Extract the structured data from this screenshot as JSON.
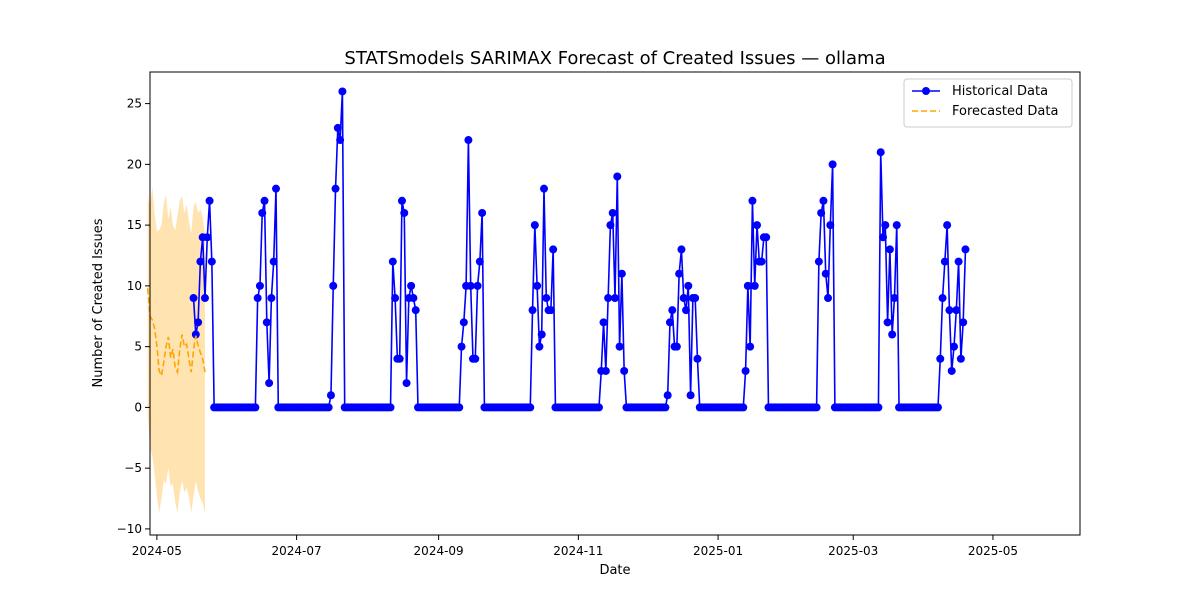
{
  "chart_data": {
    "type": "line",
    "title": "STATSmodels SARIMAX Forecast of Created Issues — ollama",
    "xlabel": "Date",
    "ylabel": "Number of Created Issues",
    "xlim": [
      "2024-04-28",
      "2025-06-08"
    ],
    "ylim": [
      -10.5,
      27.6
    ],
    "x_ticks": [
      "2024-05-01",
      "2024-07-01",
      "2024-09-01",
      "2024-11-01",
      "2025-01-01",
      "2025-03-01",
      "2025-05-01"
    ],
    "x_tick_labels": [
      "2024-05",
      "2024-07",
      "2024-09",
      "2024-11",
      "2025-01",
      "2025-03",
      "2025-05"
    ],
    "y_ticks": [
      -10,
      -5,
      0,
      5,
      10,
      15,
      20,
      25
    ],
    "y_tick_labels": [
      "−10",
      "−5",
      "0",
      "5",
      "10",
      "15",
      "20",
      "25"
    ],
    "grid": false,
    "legend_position": "top-right",
    "series": [
      {
        "name": "Historical Data",
        "color": "#0000ff",
        "style": "solid-with-markers",
        "start": "2024-05-17",
        "values": [
          9,
          6,
          7,
          12,
          14,
          9,
          14,
          17,
          12,
          0,
          0,
          0,
          0,
          0,
          0,
          0,
          0,
          0,
          0,
          0,
          0,
          0,
          0,
          0,
          0,
          0,
          0,
          0,
          9,
          10,
          16,
          17,
          7,
          2,
          9,
          12,
          18,
          0,
          0,
          0,
          0,
          0,
          0,
          0,
          0,
          0,
          0,
          0,
          0,
          0,
          0,
          0,
          0,
          0,
          0,
          0,
          0,
          0,
          0,
          0,
          1,
          10,
          18,
          23,
          22,
          26,
          0,
          0,
          0,
          0,
          0,
          0,
          0,
          0,
          0,
          0,
          0,
          0,
          0,
          0,
          0,
          0,
          0,
          0,
          0,
          0,
          0,
          12,
          9,
          4,
          4,
          17,
          16,
          2,
          9,
          10,
          9,
          8,
          0,
          0,
          0,
          0,
          0,
          0,
          0,
          0,
          0,
          0,
          0,
          0,
          0,
          0,
          0,
          0,
          0,
          0,
          0,
          5,
          7,
          10,
          22,
          10,
          4,
          4,
          10,
          12,
          16,
          0,
          0,
          0,
          0,
          0,
          0,
          0,
          0,
          0,
          0,
          0,
          0,
          0,
          0,
          0,
          0,
          0,
          0,
          0,
          0,
          0,
          8,
          15,
          10,
          5,
          6,
          18,
          9,
          8,
          8,
          13,
          0,
          0,
          0,
          0,
          0,
          0,
          0,
          0,
          0,
          0,
          0,
          0,
          0,
          0,
          0,
          0,
          0,
          0,
          0,
          0,
          3,
          7,
          3,
          9,
          15,
          16,
          9,
          19,
          5,
          11,
          3,
          0,
          0,
          0,
          0,
          0,
          0,
          0,
          0,
          0,
          0,
          0,
          0,
          0,
          0,
          0,
          0,
          0,
          0,
          1,
          7,
          8,
          5,
          5,
          11,
          13,
          9,
          8,
          10,
          1,
          9,
          9,
          4,
          0,
          0,
          0,
          0,
          0,
          0,
          0,
          0,
          0,
          0,
          0,
          0,
          0,
          0,
          0,
          0,
          0,
          0,
          0,
          0,
          3,
          10,
          5,
          17,
          10,
          15,
          12,
          12,
          14,
          14,
          0,
          0,
          0,
          0,
          0,
          0,
          0,
          0,
          0,
          0,
          0,
          0,
          0,
          0,
          0,
          0,
          0,
          0,
          0,
          0,
          0,
          0,
          12,
          16,
          17,
          11,
          9,
          15,
          20,
          0,
          0,
          0,
          0,
          0,
          0,
          0,
          0,
          0,
          0,
          0,
          0,
          0,
          0,
          0,
          0,
          0,
          0,
          0,
          0,
          21,
          14,
          15,
          7,
          13,
          6,
          9,
          15,
          0,
          0,
          0,
          0,
          0,
          0,
          0,
          0,
          0,
          0,
          0,
          0,
          0,
          0,
          0,
          0,
          0,
          0,
          4,
          9,
          12,
          15,
          8,
          3,
          5,
          8,
          12,
          4,
          7,
          13
        ]
      },
      {
        "name": "Forecasted Data",
        "color": "#ffa500",
        "style": "dashed",
        "start": "2024-04-27",
        "values": [
          9.8,
          7.5,
          7.2,
          6.5,
          5.1,
          3.0,
          2.6,
          3.7,
          5.0,
          5.8,
          4.1,
          4.8,
          3.3,
          2.9,
          4.8,
          6.0,
          5.0,
          5.2,
          4.0,
          2.9,
          4.7,
          5.9,
          5.1,
          4.5,
          4.0,
          2.9
        ],
        "confidence_interval": {
          "color": "#ffa500",
          "opacity": 0.3,
          "upper": [
            17.5,
            16.5,
            18.2,
            16.0,
            14.5,
            14.6,
            15.0,
            16.8,
            17.5,
            15.5,
            16.5,
            15.0,
            14.6,
            15.8,
            17.0,
            17.4,
            16.0,
            16.7,
            15.3,
            14.3,
            16.5,
            16.9,
            16.0,
            16.3,
            15.7,
            14.3
          ],
          "lower": [
            -0.5,
            -3.3,
            -4.0,
            -5.5,
            -7.3,
            -8.7,
            -7.5,
            -6.0,
            -6.3,
            -5.0,
            -6.5,
            -6.3,
            -7.8,
            -8.7,
            -7.0,
            -6.0,
            -7.0,
            -6.6,
            -7.4,
            -8.7,
            -7.3,
            -6.1,
            -6.9,
            -7.5,
            -7.9,
            -8.7
          ]
        }
      }
    ]
  }
}
